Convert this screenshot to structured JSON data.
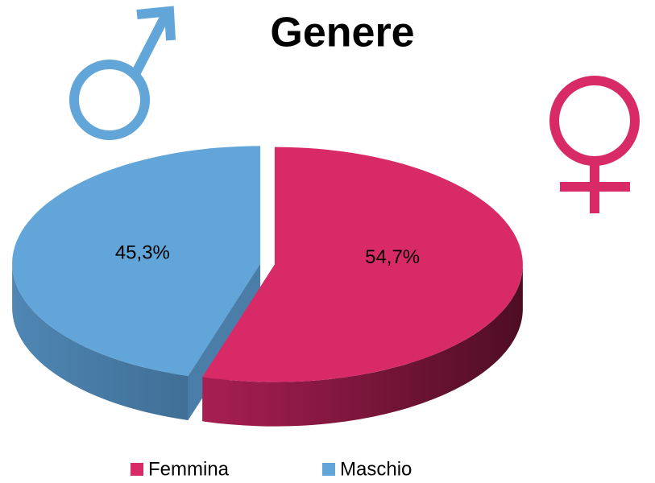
{
  "chart_data": {
    "type": "pie",
    "title": "Genere",
    "categories": [
      "Femmina",
      "Maschio"
    ],
    "values": [
      54.7,
      45.3
    ],
    "value_labels": [
      "54,7%",
      "45,3%"
    ],
    "colors": [
      "#d92a68",
      "#62a5d8"
    ],
    "legend": "bottom"
  }
}
